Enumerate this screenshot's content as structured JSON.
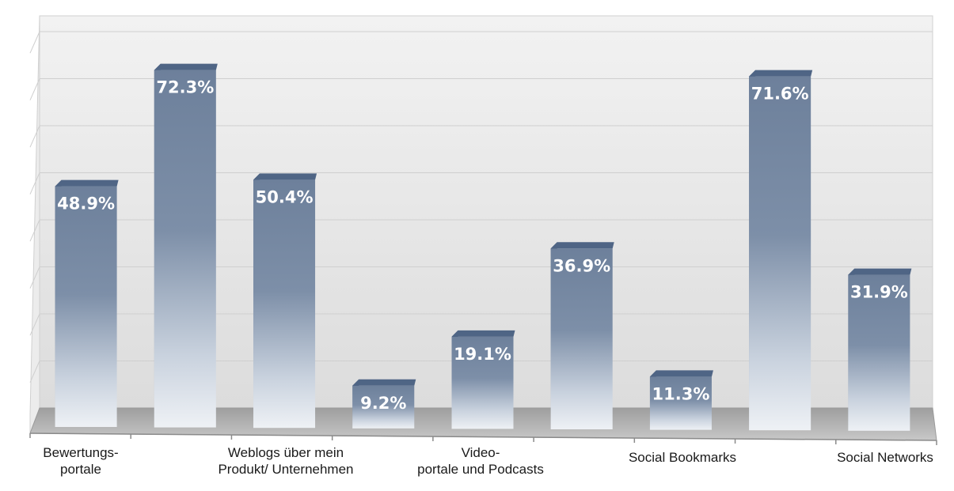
{
  "chart_data": {
    "type": "bar",
    "title": "",
    "xlabel": "",
    "ylabel": "",
    "ylim": [
      0,
      80
    ],
    "grid": true,
    "value_suffix": "%",
    "categories": [
      "Bewertungsportale",
      "",
      "Weblogs über mein Produkt/ Unternehmen",
      "",
      "Videoportale und Podcasts",
      "",
      "Social Bookmarks",
      "",
      "Social Networks"
    ],
    "category_labels": [
      [
        "Bewertungs-",
        "portale"
      ],
      [
        "Weblogs über mein",
        "Produkt/ Unternehmen"
      ],
      [
        "Video-",
        "portale und Podcasts"
      ],
      [
        "Social Bookmarks"
      ],
      [
        "Social Networks"
      ]
    ],
    "values": [
      48.9,
      72.3,
      50.4,
      9.2,
      19.1,
      36.9,
      11.3,
      71.6,
      31.9
    ],
    "value_labels": [
      "48.9%",
      "72.3%",
      "50.4%",
      "9.2%",
      "19.1%",
      "36.9%",
      "11.3%",
      "71.6%",
      "31.9%"
    ],
    "colors": {
      "bar_top": "#6e819c",
      "bar_bottom": "#e8ecf1",
      "bar_cap": "#4f6585",
      "wall": "#e2e2e2",
      "floor": "#b3b3b3"
    }
  }
}
